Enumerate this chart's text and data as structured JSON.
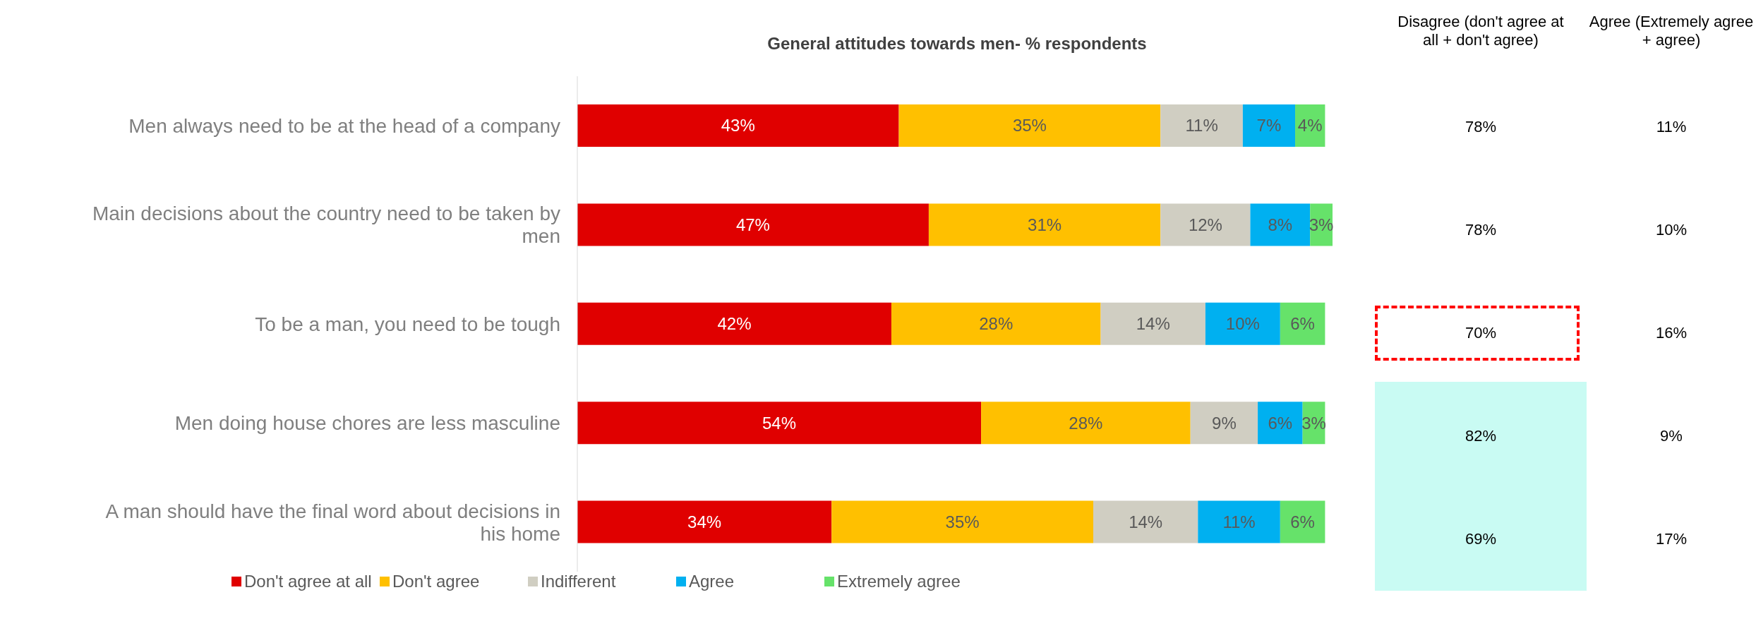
{
  "chart_data": {
    "type": "bar",
    "orientation": "horizontal",
    "stacked": true,
    "title": "General attitudes towards men- % respondents",
    "categories": [
      "Men always need to be at the head of a company",
      "Main decisions about the country need to be taken by men",
      "To be a man, you need to be tough",
      "Men doing house chores are less masculine",
      "A man should have the final word about decisions in his home"
    ],
    "series": [
      {
        "name": "Don't agree at all",
        "color": "#e00000",
        "values": [
          43,
          47,
          42,
          54,
          34
        ],
        "value_labels": [
          "43%",
          "47%",
          "42%",
          "54%",
          "34%"
        ]
      },
      {
        "name": "Don't agree",
        "color": "#ffc000",
        "values": [
          35,
          31,
          28,
          28,
          35
        ],
        "value_labels": [
          "35%",
          "31%",
          "28%",
          "28%",
          "35%"
        ]
      },
      {
        "name": "Indifferent",
        "color": "#d0cec2",
        "values": [
          11,
          12,
          14,
          9,
          14
        ],
        "value_labels": [
          "11%",
          "12%",
          "14%",
          "9%",
          "14%"
        ]
      },
      {
        "name": "Agree",
        "color": "#00b0f0",
        "values": [
          7,
          8,
          10,
          6,
          11
        ],
        "value_labels": [
          "7%",
          "8%",
          "10%",
          "6%",
          "11%"
        ]
      },
      {
        "name": "Extremely agree",
        "color": "#66e26a",
        "values": [
          4,
          3,
          6,
          3,
          6
        ],
        "value_labels": [
          "4%",
          "3%",
          "6%",
          "3%",
          "6%"
        ]
      }
    ],
    "legend": "bottom",
    "grid": false,
    "annotations": [
      "Disagree (don't agree at all + don't agree)",
      "Agree (Extremely agree + agree)",
      "78%",
      "11%",
      "78%",
      "10%",
      "70%",
      "16%",
      "82%",
      "9%",
      "69%",
      "17%"
    ]
  }
}
